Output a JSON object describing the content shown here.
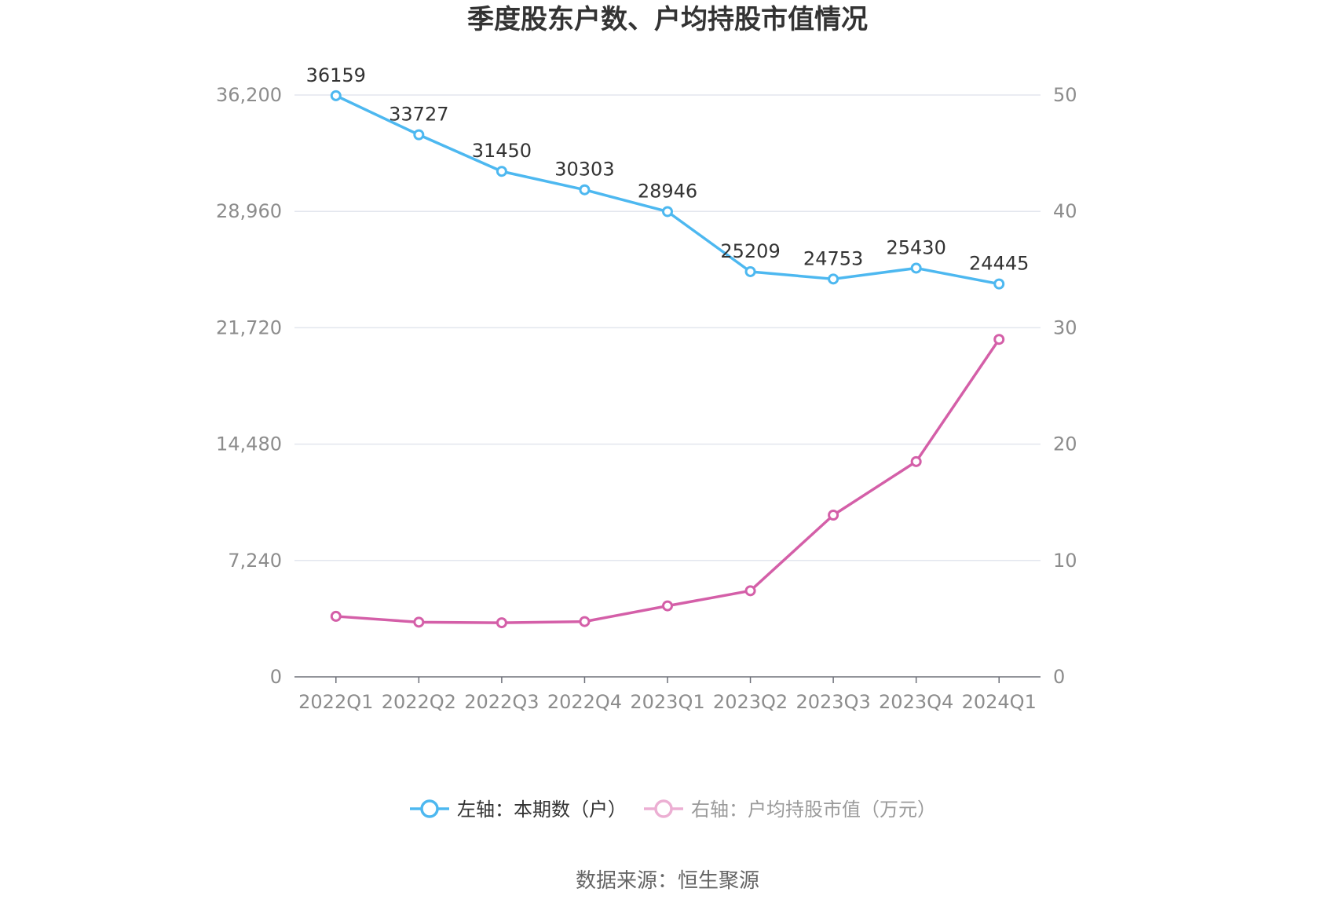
{
  "chart_data": {
    "type": "line",
    "title": "季度股东户数、户均持股市值情况",
    "categories": [
      "2022Q1",
      "2022Q2",
      "2022Q3",
      "2022Q4",
      "2023Q1",
      "2023Q2",
      "2023Q3",
      "2023Q4",
      "2024Q1"
    ],
    "left_axis": {
      "ylim": [
        0,
        36200
      ],
      "ticks": [
        "0",
        "7,240",
        "14,480",
        "21,720",
        "28,960",
        "36,200"
      ],
      "tick_values": [
        0,
        7240,
        14480,
        21720,
        28960,
        36200
      ]
    },
    "right_axis": {
      "ylim": [
        0,
        50
      ],
      "ticks": [
        "0",
        "10",
        "20",
        "30",
        "40",
        "50"
      ],
      "tick_values": [
        0,
        10,
        20,
        30,
        40,
        50
      ]
    },
    "series": [
      {
        "name": "左轴：本期数（户）",
        "axis": "left",
        "color": "#4db8f0",
        "values": [
          36159,
          33727,
          31450,
          30303,
          28946,
          25209,
          24753,
          25430,
          24445
        ],
        "labels": [
          "36159",
          "33727",
          "31450",
          "30303",
          "28946",
          "25209",
          "24753",
          "25430",
          "24445"
        ]
      },
      {
        "name": "右轴：户均持股市值（万元）",
        "axis": "right",
        "color": "#d45fa8",
        "values": [
          5.2,
          4.7,
          4.65,
          4.75,
          6.1,
          7.4,
          13.9,
          18.5,
          29.0
        ]
      }
    ],
    "grid": true,
    "legend_position": "bottom"
  },
  "source": "数据来源：恒生聚源"
}
